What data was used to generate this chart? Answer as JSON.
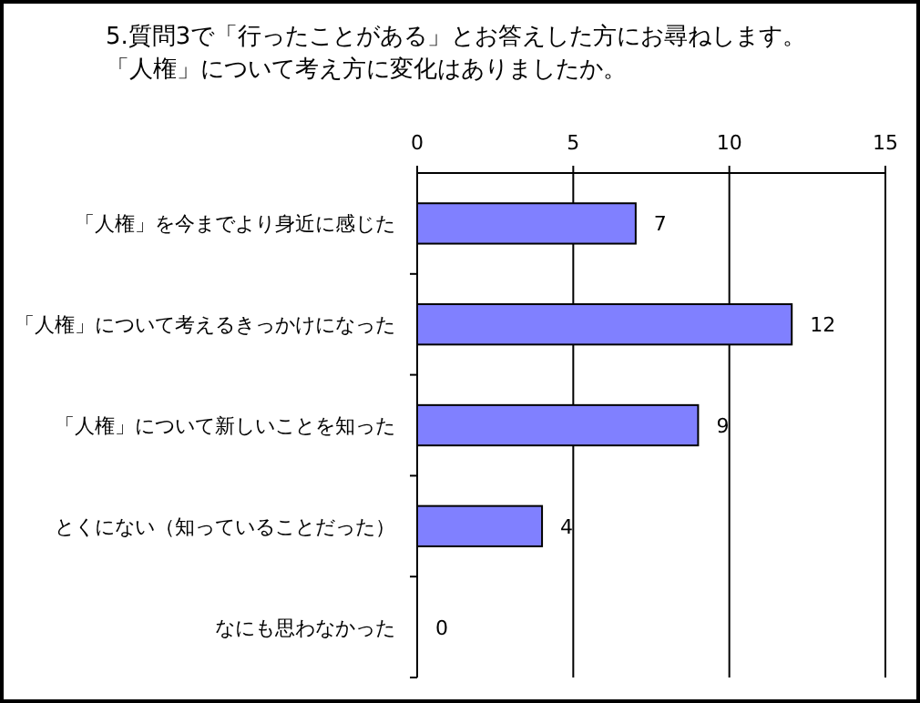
{
  "chart_data": {
    "type": "bar",
    "orientation": "horizontal",
    "title": "5.質問3で「行ったことがある」とお答えした方にお尋ねします。「人権」について考え方に変化はありましたか。",
    "categories": [
      "「人権」を今までより身近に感じた",
      "「人権」について考えるきっかけになった",
      "「人権」について新しいことを知った",
      "とくにない（知っていることだった）",
      "なにも思わなかった"
    ],
    "values": [
      7,
      12,
      9,
      4,
      0
    ],
    "color": "#8080ff",
    "xlim": [
      0,
      15
    ],
    "xticks": [
      0,
      5,
      10,
      15
    ],
    "grid": "x",
    "data_labels": true
  }
}
